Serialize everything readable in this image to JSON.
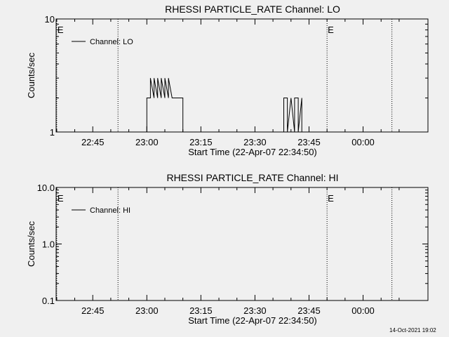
{
  "chart_data": [
    {
      "type": "line",
      "title": "RHESSI PARTICLE_RATE Channel: LO",
      "xlabel": "Start Time (22-Apr-07 22:34:50)",
      "ylabel": "Counts/sec",
      "y_scale": "log",
      "ylim": [
        1,
        10
      ],
      "y_ticks": [
        "10",
        "1"
      ],
      "y_tick_values": [
        10,
        1
      ],
      "x_ticks": [
        "22:45",
        "23:00",
        "23:15",
        "23:30",
        "23:45",
        "00:00"
      ],
      "x_tick_values": [
        "22:45",
        "23:00",
        "23:15",
        "23:30",
        "23:45",
        "00:00"
      ],
      "xlim": [
        "22:34:50",
        "00:18"
      ],
      "grid": false,
      "legend": {
        "position": "top-left",
        "entries": [
          "Channel: LO"
        ]
      },
      "event_markers": [
        {
          "time": "22:52",
          "label": ""
        },
        {
          "time": "22:35",
          "label": "E"
        },
        {
          "time": "23:50",
          "label": "E"
        },
        {
          "time": "00:08",
          "label": ""
        }
      ],
      "series": [
        {
          "name": "Channel: LO",
          "x": [
            "23:00",
            "23:00",
            "23:01",
            "23:01",
            "23:02",
            "23:02",
            "23:03",
            "23:03",
            "23:04",
            "23:04",
            "23:05",
            "23:05",
            "23:06",
            "23:06",
            "23:07",
            "23:08",
            "23:08",
            "23:09",
            "23:09",
            "23:10",
            "23:10",
            "23:38",
            "23:38",
            "23:39",
            "23:39",
            "23:40",
            "23:40",
            "23:41",
            "23:41",
            "23:42",
            "23:42",
            "23:43",
            "23:43"
          ],
          "y": [
            1,
            2,
            2,
            3,
            2,
            3,
            2,
            3,
            2,
            3,
            2,
            3,
            2,
            3,
            2,
            2,
            2,
            2,
            2,
            2,
            1,
            1,
            2,
            2,
            1,
            2,
            2,
            1,
            2,
            2,
            1,
            2,
            1
          ]
        }
      ]
    },
    {
      "type": "line",
      "title": "RHESSI PARTICLE_RATE Channel: HI",
      "xlabel": "Start Time (22-Apr-07 22:34:50)",
      "ylabel": "Counts/sec",
      "y_scale": "log",
      "ylim": [
        0.1,
        10
      ],
      "y_ticks": [
        "10.0",
        "1.0",
        "0.1"
      ],
      "y_tick_values": [
        10,
        1,
        0.1
      ],
      "x_ticks": [
        "22:45",
        "23:00",
        "23:15",
        "23:30",
        "23:45",
        "00:00"
      ],
      "x_tick_values": [
        "22:45",
        "23:00",
        "23:15",
        "23:30",
        "23:45",
        "00:00"
      ],
      "xlim": [
        "22:34:50",
        "00:18"
      ],
      "grid": false,
      "legend": {
        "position": "top-left",
        "entries": [
          "Channel: HI"
        ]
      },
      "event_markers": [
        {
          "time": "22:52",
          "label": ""
        },
        {
          "time": "22:35",
          "label": "E"
        },
        {
          "time": "23:50",
          "label": "E"
        },
        {
          "time": "00:08",
          "label": ""
        }
      ],
      "series": [
        {
          "name": "Channel: HI",
          "x": [],
          "y": []
        }
      ]
    }
  ],
  "footer": {
    "timestamp": "14-Oct-2021 19:02"
  }
}
